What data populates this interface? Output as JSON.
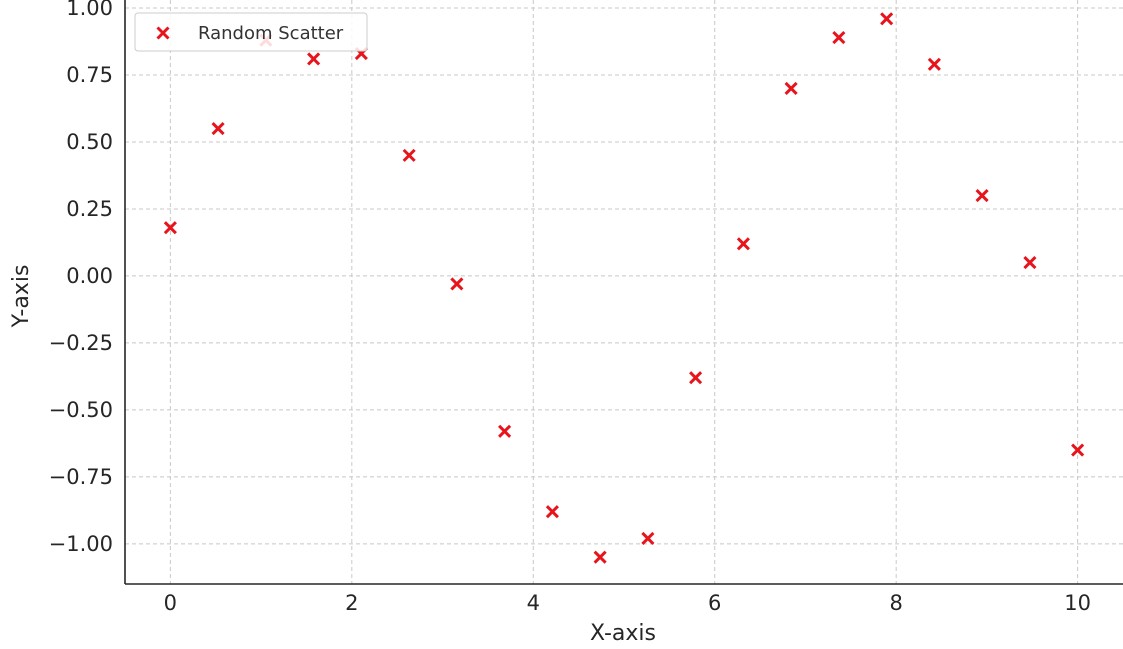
{
  "chart_data": {
    "type": "scatter",
    "title": "",
    "xlabel": "X-axis",
    "ylabel": "Y-axis",
    "xlim": [
      -0.5,
      10.5
    ],
    "ylim": [
      -1.15,
      1.03
    ],
    "xticks": [
      0,
      2,
      4,
      6,
      8,
      10
    ],
    "xtick_labels": [
      "0",
      "2",
      "4",
      "6",
      "8",
      "10"
    ],
    "yticks": [
      1.0,
      0.75,
      0.5,
      0.25,
      0.0,
      -0.25,
      -0.5,
      -0.75,
      -1.0
    ],
    "ytick_labels": [
      "1.00",
      "0.75",
      "0.50",
      "0.25",
      "0.00",
      "−0.25",
      "−0.50",
      "−0.75",
      "−1.00"
    ],
    "grid": true,
    "legend_position": "top-left",
    "series": [
      {
        "name": "Random Scatter",
        "marker": "x",
        "color": "#e8141c",
        "x": [
          0.0,
          0.526,
          1.053,
          1.579,
          2.105,
          2.632,
          3.158,
          3.684,
          4.211,
          4.737,
          5.263,
          5.789,
          6.316,
          6.842,
          7.368,
          7.895,
          8.421,
          8.947,
          9.474,
          10.0
        ],
        "y": [
          0.18,
          0.55,
          0.88,
          0.81,
          0.83,
          0.45,
          -0.03,
          -0.58,
          -0.88,
          -1.05,
          -0.98,
          -0.38,
          0.12,
          0.7,
          0.89,
          0.96,
          0.79,
          0.3,
          0.05,
          -0.65
        ]
      }
    ]
  }
}
